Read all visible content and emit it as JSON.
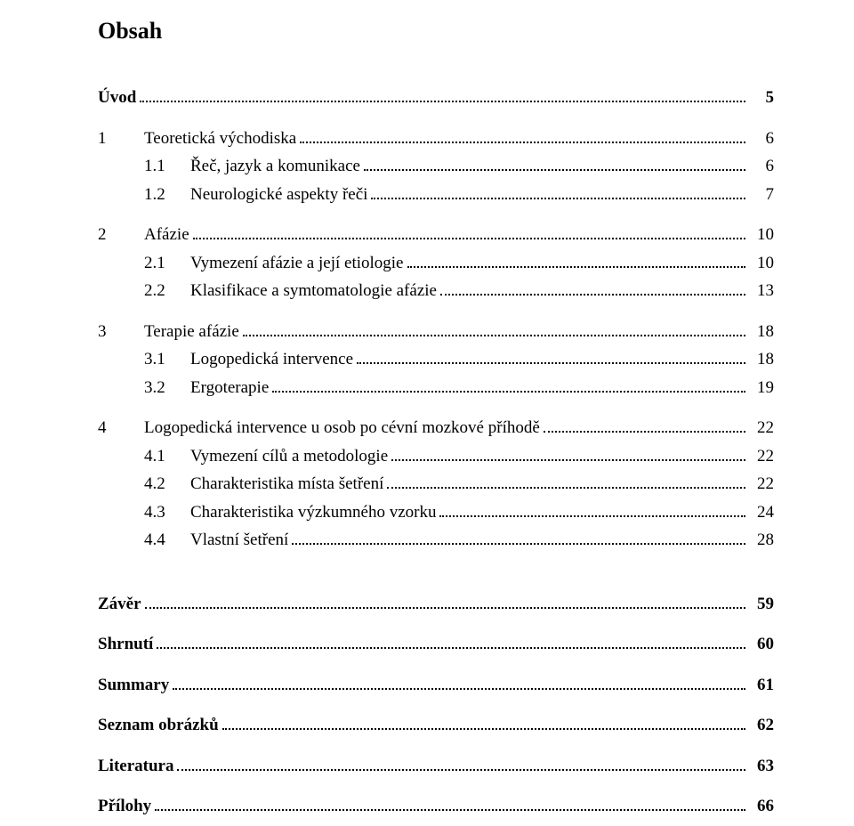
{
  "title": "Obsah",
  "entries": [
    {
      "type": "bold",
      "num": "",
      "label": "Úvod",
      "page": "5",
      "indent": 0,
      "gapAfter": "small"
    },
    {
      "type": "plain",
      "num": "1",
      "label": "Teoretická východiska",
      "page": "6",
      "indent": 0
    },
    {
      "type": "plain",
      "num": "1.1",
      "label": "Řeč, jazyk a komunikace",
      "page": "6",
      "indent": 1
    },
    {
      "type": "plain",
      "num": "1.2",
      "label": "Neurologické aspekty řeči",
      "page": "7",
      "indent": 1,
      "gapAfter": "small"
    },
    {
      "type": "plain",
      "num": "2",
      "label": "Afázie",
      "page": "10",
      "indent": 0
    },
    {
      "type": "plain",
      "num": "2.1",
      "label": "Vymezení afázie a její etiologie",
      "page": "10",
      "indent": 1
    },
    {
      "type": "plain",
      "num": "2.2",
      "label": "Klasifikace a symtomatologie afázie",
      "page": "13",
      "indent": 1,
      "gapAfter": "small"
    },
    {
      "type": "plain",
      "num": "3",
      "label": "Terapie afázie",
      "page": "18",
      "indent": 0
    },
    {
      "type": "plain",
      "num": "3.1",
      "label": "Logopedická intervence",
      "page": "18",
      "indent": 1
    },
    {
      "type": "plain",
      "num": "3.2",
      "label": "Ergoterapie",
      "page": "19",
      "indent": 1,
      "gapAfter": "small"
    },
    {
      "type": "plain",
      "num": "4",
      "label": "Logopedická intervence u osob po cévní mozkové příhodě",
      "page": "22",
      "indent": 0
    },
    {
      "type": "plain",
      "num": "4.1",
      "label": "Vymezení cílů a metodologie",
      "page": "22",
      "indent": 1
    },
    {
      "type": "plain",
      "num": "4.2",
      "label": "Charakteristika místa šetření",
      "page": "22",
      "indent": 1
    },
    {
      "type": "plain",
      "num": "4.3",
      "label": "Charakteristika výzkumného vzorku",
      "page": "24",
      "indent": 1
    },
    {
      "type": "plain",
      "num": "4.4",
      "label": "Vlastní šetření",
      "page": "28",
      "indent": 1,
      "gapAfter": "large"
    },
    {
      "type": "bold",
      "num": "",
      "label": "Závěr",
      "page": "59",
      "indent": 0,
      "gapAfter": "small"
    },
    {
      "type": "bold",
      "num": "",
      "label": "Shrnutí",
      "page": "60",
      "indent": 0,
      "gapAfter": "small"
    },
    {
      "type": "bold",
      "num": "",
      "label": "Summary",
      "page": "61",
      "indent": 0,
      "gapAfter": "small"
    },
    {
      "type": "bold",
      "num": "",
      "label": "Seznam obrázků",
      "page": "62",
      "indent": 0,
      "gapAfter": "small"
    },
    {
      "type": "bold",
      "num": "",
      "label": "Literatura",
      "page": "63",
      "indent": 0,
      "gapAfter": "small"
    },
    {
      "type": "bold",
      "num": "",
      "label": "Přílohy",
      "page": "66",
      "indent": 0
    }
  ]
}
